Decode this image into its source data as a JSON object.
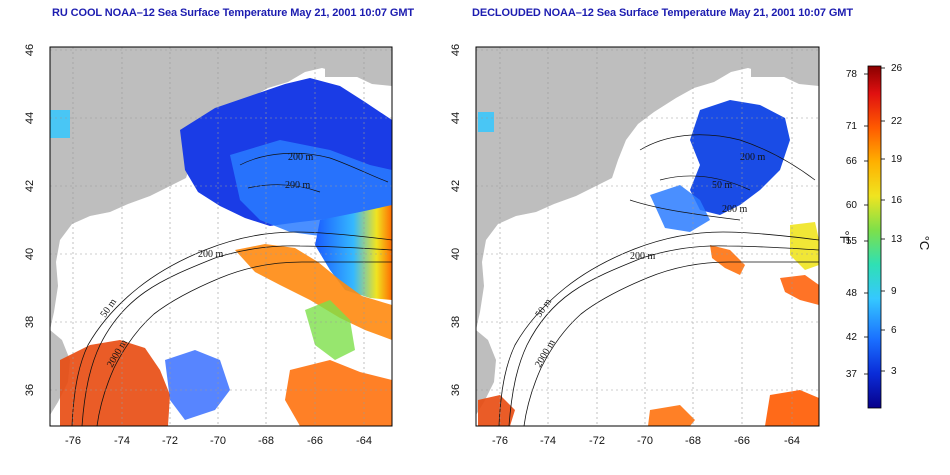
{
  "panels": [
    {
      "title": "RU COOL NOAA–12 Sea Surface Temperature May 21, 2001 10:07 GMT",
      "contour_labels": [
        "200 m",
        "200 m",
        "200 m",
        "50 m",
        "2000 m"
      ]
    },
    {
      "title": "DECLOUDED NOAA–12 Sea Surface Temperature May 21, 2001 10:07 GMT",
      "contour_labels": [
        "200 m",
        "50 m",
        "200 m",
        "200 m",
        "50 m",
        "2000 m"
      ]
    }
  ],
  "map_axes": {
    "lon_ticks": [
      "-76",
      "-74",
      "-72",
      "-70",
      "-68",
      "-66",
      "-64"
    ],
    "lat_ticks": [
      "36",
      "38",
      "40",
      "42",
      "44",
      "46"
    ]
  },
  "colorbar": {
    "fahrenheit_ticks": [
      "78",
      "71",
      "66",
      "60",
      "55",
      "48",
      "42",
      "37"
    ],
    "celsius_ticks": [
      "26",
      "22",
      "19",
      "16",
      "13",
      "9",
      "6",
      "3"
    ],
    "fahrenheit_unit": "°F",
    "celsius_unit": "°C",
    "cmap": [
      "#08008a",
      "#0a2cd8",
      "#1a6fff",
      "#35c8ff",
      "#2fe0b4",
      "#7de04a",
      "#f0e420",
      "#ffb000",
      "#ff5a00",
      "#e01010",
      "#8a0000"
    ]
  },
  "colors": {
    "land": "#bebebe",
    "ocean_no_data": "#ffffff",
    "grid": "#999999",
    "title": "#1c1cb0"
  }
}
